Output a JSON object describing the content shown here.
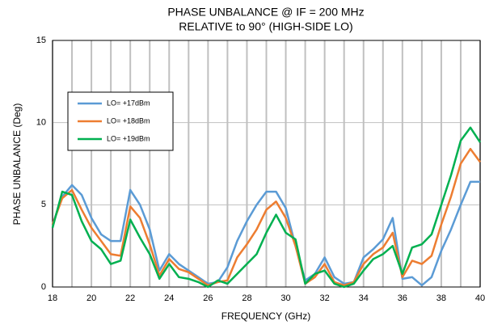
{
  "chart_data": {
    "type": "line",
    "title": "PHASE UNBALANCE @ IF = 200 MHz",
    "subtitle": "RELATIVE to 90° (HIGH-SIDE LO)",
    "x_label": "FREQUENCY (GHz)",
    "y_label": "PHASE UNBALANCE (Deg)",
    "x": [
      18,
      18.5,
      19,
      19.5,
      20,
      20.5,
      21,
      21.5,
      22,
      22.5,
      23,
      23.5,
      24,
      24.5,
      25,
      25.5,
      26,
      26.5,
      27,
      27.5,
      28,
      28.5,
      29,
      29.5,
      30,
      30.5,
      31,
      31.5,
      32,
      32.5,
      33,
      33.5,
      34,
      34.5,
      35,
      35.5,
      36,
      36.5,
      37,
      37.5,
      38,
      38.5,
      39,
      39.5,
      40
    ],
    "series": [
      {
        "name": "LO= +17dBm",
        "color": "#5b9bd5",
        "values": [
          3.8,
          5.5,
          6.2,
          5.6,
          4.2,
          3.2,
          2.8,
          2.8,
          5.9,
          5.0,
          3.5,
          1.0,
          2.0,
          1.4,
          1.0,
          0.6,
          0.2,
          0.3,
          1.2,
          2.8,
          4.0,
          5.0,
          5.8,
          5.8,
          4.8,
          2.5,
          0.4,
          0.8,
          1.8,
          0.6,
          0.2,
          0.3,
          1.8,
          2.3,
          2.9,
          4.2,
          0.5,
          0.6,
          0.1,
          0.6,
          2.2,
          3.5,
          5.0,
          6.4,
          6.4
        ]
      },
      {
        "name": "LO= +18dBm",
        "color": "#ed7d31",
        "values": [
          3.8,
          5.4,
          5.9,
          4.7,
          3.6,
          2.8,
          2.0,
          1.9,
          4.9,
          4.2,
          2.6,
          0.7,
          1.7,
          1.1,
          0.9,
          0.5,
          0.1,
          0.3,
          0.4,
          1.8,
          2.6,
          3.5,
          4.7,
          5.2,
          4.2,
          2.5,
          0.2,
          0.6,
          1.4,
          0.3,
          0.1,
          0.3,
          1.4,
          2.0,
          2.4,
          3.3,
          0.6,
          1.6,
          1.4,
          1.9,
          3.8,
          5.5,
          7.5,
          8.4,
          7.6
        ]
      },
      {
        "name": "LO= +19dBm",
        "color": "#00b050",
        "values": [
          3.6,
          5.8,
          5.6,
          4.0,
          2.8,
          2.3,
          1.4,
          1.6,
          4.1,
          3.0,
          2.0,
          0.5,
          1.4,
          0.6,
          0.5,
          0.3,
          0.0,
          0.4,
          0.2,
          0.8,
          1.4,
          2.0,
          3.3,
          4.4,
          3.3,
          2.9,
          0.2,
          0.8,
          1.0,
          0.2,
          0.0,
          0.2,
          1.0,
          1.7,
          2.0,
          2.5,
          0.8,
          2.4,
          2.6,
          3.2,
          5.0,
          6.8,
          8.9,
          9.7,
          8.8
        ]
      }
    ],
    "xlim": [
      18,
      40
    ],
    "xticks": [
      18,
      20,
      22,
      24,
      26,
      28,
      30,
      32,
      34,
      36,
      38,
      40
    ],
    "x_minor_grid": [
      19,
      21,
      23,
      25,
      27,
      29,
      31,
      33,
      35,
      37,
      39
    ],
    "ylim": [
      0,
      15
    ],
    "yticks": [
      0,
      5,
      10,
      15
    ],
    "grid": true,
    "legend_position": "upper-left"
  }
}
